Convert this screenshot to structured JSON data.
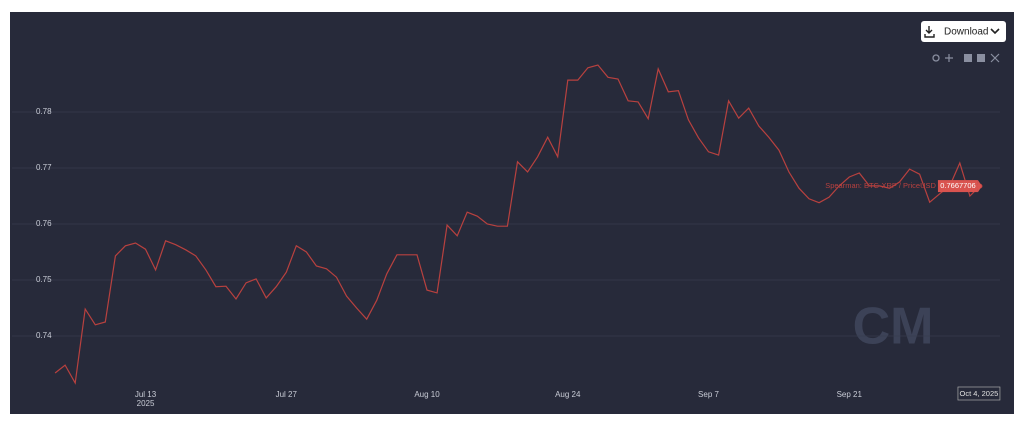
{
  "toolbar": {
    "download": "Download"
  },
  "watermark": "CM",
  "crosshair_label": "Oct 4, 2025",
  "chart_data": {
    "type": "line",
    "x": [
      "2025-07-04",
      "2025-07-05",
      "2025-07-06",
      "2025-07-07",
      "2025-07-08",
      "2025-07-09",
      "2025-07-10",
      "2025-07-11",
      "2025-07-12",
      "2025-07-13",
      "2025-07-14",
      "2025-07-15",
      "2025-07-16",
      "2025-07-17",
      "2025-07-18",
      "2025-07-19",
      "2025-07-20",
      "2025-07-21",
      "2025-07-22",
      "2025-07-23",
      "2025-07-24",
      "2025-07-25",
      "2025-07-26",
      "2025-07-27",
      "2025-07-28",
      "2025-07-29",
      "2025-07-30",
      "2025-07-31",
      "2025-08-01",
      "2025-08-02",
      "2025-08-03",
      "2025-08-04",
      "2025-08-05",
      "2025-08-06",
      "2025-08-07",
      "2025-08-08",
      "2025-08-09",
      "2025-08-10",
      "2025-08-11",
      "2025-08-12",
      "2025-08-13",
      "2025-08-14",
      "2025-08-15",
      "2025-08-16",
      "2025-08-17",
      "2025-08-18",
      "2025-08-19",
      "2025-08-20",
      "2025-08-21",
      "2025-08-22",
      "2025-08-23",
      "2025-08-24",
      "2025-08-25",
      "2025-08-26",
      "2025-08-27",
      "2025-08-28",
      "2025-08-29",
      "2025-08-30",
      "2025-08-31",
      "2025-09-01",
      "2025-09-02",
      "2025-09-03",
      "2025-09-04",
      "2025-09-05",
      "2025-09-06",
      "2025-09-07",
      "2025-09-08",
      "2025-09-09",
      "2025-09-10",
      "2025-09-11",
      "2025-09-12",
      "2025-09-13",
      "2025-09-14",
      "2025-09-15",
      "2025-09-16",
      "2025-09-17",
      "2025-09-18",
      "2025-09-19",
      "2025-09-20",
      "2025-09-21",
      "2025-09-22",
      "2025-09-23",
      "2025-09-24",
      "2025-09-25",
      "2025-09-26",
      "2025-09-27",
      "2025-09-28",
      "2025-09-29",
      "2025-09-30",
      "2025-10-01",
      "2025-10-02",
      "2025-10-03",
      "2025-10-04"
    ],
    "series": [
      {
        "name": "Spearman: BTC-XRP / PriceUSD",
        "color": "#b8413f",
        "values": [
          0.7334,
          0.7348,
          0.7316,
          0.7448,
          0.742,
          0.7425,
          0.7543,
          0.7561,
          0.7566,
          0.7555,
          0.7518,
          0.757,
          0.7563,
          0.7554,
          0.7543,
          0.7518,
          0.7488,
          0.7489,
          0.7466,
          0.7495,
          0.7502,
          0.7468,
          0.7488,
          0.7514,
          0.7561,
          0.755,
          0.7525,
          0.752,
          0.7505,
          0.7471,
          0.745,
          0.743,
          0.7464,
          0.7511,
          0.7545,
          0.7545,
          0.7545,
          0.7482,
          0.7477,
          0.7598,
          0.7579,
          0.7621,
          0.7614,
          0.76,
          0.7596,
          0.7596,
          0.7711,
          0.7693,
          0.772,
          0.7755,
          0.772,
          0.7857,
          0.7857,
          0.7879,
          0.7884,
          0.7862,
          0.7859,
          0.782,
          0.7818,
          0.7788,
          0.7877,
          0.7836,
          0.7838,
          0.7786,
          0.7754,
          0.7729,
          0.7723,
          0.782,
          0.7789,
          0.7807,
          0.7775,
          0.7755,
          0.7732,
          0.7693,
          0.7664,
          0.7645,
          0.7638,
          0.7648,
          0.7668,
          0.7684,
          0.7691,
          0.7668,
          0.7668,
          0.7664,
          0.7675,
          0.7698,
          0.7689,
          0.7639,
          0.7654,
          0.7668,
          0.7709,
          0.765,
          0.7667706
        ]
      }
    ],
    "xlim": [
      "2025-07-03",
      "2025-10-05"
    ],
    "xticks": [
      {
        "value": "2025-07-13",
        "label": "Jul 13"
      },
      {
        "value": "2025-07-27",
        "label": "Jul 27"
      },
      {
        "value": "2025-08-10",
        "label": "Aug 10"
      },
      {
        "value": "2025-08-24",
        "label": "Aug 24"
      },
      {
        "value": "2025-09-07",
        "label": "Sep 7"
      },
      {
        "value": "2025-09-21",
        "label": "Sep 21"
      }
    ],
    "x_year_label": "2025",
    "ylim": [
      0.73,
      0.789
    ],
    "yticks": [
      0.74,
      0.75,
      0.76,
      0.77,
      0.78
    ],
    "grid": true
  }
}
